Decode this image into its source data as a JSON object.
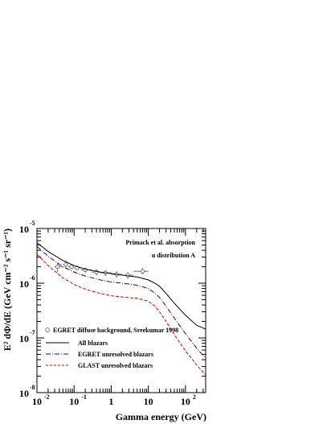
{
  "chart_data": {
    "type": "line",
    "title": "",
    "xlabel": "Gamma energy (GeV)",
    "ylabel": "E² dΦ/dE (GeV cm⁻² s⁻¹ sr⁻¹)",
    "xscale": "log",
    "yscale": "log",
    "xlim": [
      0.01,
      350
    ],
    "ylim": [
      1e-08,
      1e-05
    ],
    "x_ticks": [
      {
        "base": "10",
        "exp": "-2",
        "value": 0.01
      },
      {
        "base": "10",
        "exp": "-1",
        "value": 0.1
      },
      {
        "base": "1",
        "exp": "",
        "value": 1
      },
      {
        "base": "10",
        "exp": "",
        "value": 10
      },
      {
        "base": "10",
        "exp": "2",
        "value": 100
      }
    ],
    "y_ticks": [
      {
        "base": "10",
        "exp": "-8",
        "value": 1e-08
      },
      {
        "base": "10",
        "exp": "-7",
        "value": 1e-07
      },
      {
        "base": "10",
        "exp": "-6",
        "value": 1e-06
      },
      {
        "base": "10",
        "exp": "-5",
        "value": 1e-05
      }
    ],
    "annotations": [
      "Primack et al. absorption",
      "α distribution A"
    ],
    "legend_position": "lower-left",
    "series": [
      {
        "name": "EGRET diffuse background, Sreekumar 1998",
        "kind": "points",
        "color": "#555555",
        "points": [
          {
            "x": 0.036,
            "y": 2e-06,
            "xlo": 0.03,
            "xhi": 0.05,
            "ylo": 1.6e-06,
            "yhi": 2.4e-06
          },
          {
            "x": 0.06,
            "y": 2.2e-06,
            "xlo": 0.05,
            "xhi": 0.07,
            "ylo": 1.9e-06,
            "yhi": 2.6e-06
          },
          {
            "x": 0.085,
            "y": 2e-06,
            "xlo": 0.07,
            "xhi": 0.1,
            "ylo": 1.8e-06,
            "yhi": 2.2e-06
          },
          {
            "x": 0.12,
            "y": 1.9e-06,
            "xlo": 0.1,
            "xhi": 0.15,
            "ylo": 1.7e-06,
            "yhi": 2.1e-06
          },
          {
            "x": 0.2,
            "y": 1.75e-06,
            "xlo": 0.15,
            "xhi": 0.3,
            "ylo": 1.55e-06,
            "yhi": 1.95e-06
          },
          {
            "x": 0.4,
            "y": 1.6e-06,
            "xlo": 0.3,
            "xhi": 0.5,
            "ylo": 1.4e-06,
            "yhi": 1.8e-06
          },
          {
            "x": 0.7,
            "y": 1.55e-06,
            "xlo": 0.5,
            "xhi": 1.0,
            "ylo": 1.35e-06,
            "yhi": 1.75e-06
          },
          {
            "x": 1.4,
            "y": 1.45e-06,
            "xlo": 1.0,
            "xhi": 2.0,
            "ylo": 1.25e-06,
            "yhi": 1.65e-06
          },
          {
            "x": 2.8,
            "y": 1.4e-06,
            "xlo": 2.0,
            "xhi": 4.0,
            "ylo": 1.2e-06,
            "yhi": 1.6e-06
          },
          {
            "x": 7.0,
            "y": 1.65e-06,
            "xlo": 4.0,
            "xhi": 10.0,
            "ylo": 1.45e-06,
            "yhi": 1.9e-06
          }
        ]
      },
      {
        "name": "All blazars",
        "kind": "line",
        "style": "solid",
        "color": "#000000",
        "x": [
          0.01,
          0.02,
          0.05,
          0.1,
          0.2,
          0.5,
          1,
          2,
          5,
          10,
          15,
          20,
          30,
          50,
          100,
          200,
          350
        ],
        "y": [
          5.5e-06,
          3.8e-06,
          2.6e-06,
          2.1e-06,
          1.8e-06,
          1.6e-06,
          1.5e-06,
          1.4e-06,
          1.3e-06,
          1.15e-06,
          1e-06,
          8.8e-07,
          6.5e-07,
          4.3e-07,
          2.6e-07,
          1.7e-07,
          1.45e-07
        ]
      },
      {
        "name": "EGRET unresolved blazars",
        "kind": "line",
        "style": "dashdot",
        "color": "#0000cc",
        "x": [
          0.01,
          0.02,
          0.05,
          0.1,
          0.2,
          0.5,
          1,
          2,
          5,
          10,
          15,
          20,
          30,
          50,
          100,
          200,
          350
        ],
        "y": [
          4.7e-06,
          3.1e-06,
          2e-06,
          1.6e-06,
          1.35e-06,
          1.15e-06,
          1.05e-06,
          1e-06,
          9.2e-07,
          8e-07,
          6.6e-07,
          5.5e-07,
          3.8e-07,
          2.3e-07,
          1.2e-07,
          6.5e-08,
          4.2e-08
        ]
      },
      {
        "name": "GLAST unresolved blazars",
        "kind": "line",
        "style": "dashed",
        "color": "#dd0000",
        "x": [
          0.01,
          0.02,
          0.05,
          0.1,
          0.2,
          0.5,
          1,
          2,
          5,
          10,
          15,
          20,
          30,
          50,
          100,
          200,
          350
        ],
        "y": [
          3.4e-06,
          2.1e-06,
          1.25e-06,
          9.5e-07,
          7.8e-07,
          6.5e-07,
          5.9e-07,
          5.6e-07,
          5.3e-07,
          4.7e-07,
          3.8e-07,
          3e-07,
          2e-07,
          1.15e-07,
          5.8e-08,
          3.2e-08,
          2.1e-08
        ]
      }
    ]
  }
}
